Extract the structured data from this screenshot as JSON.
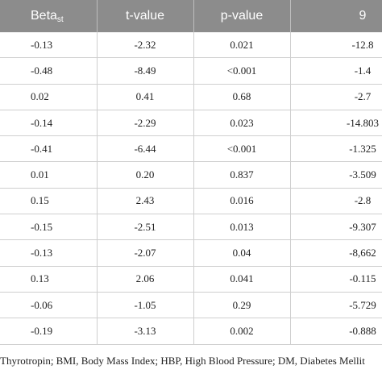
{
  "table": {
    "header": [
      "Beta",
      "t-value",
      "p-value",
      "9"
    ],
    "header_sub": "st",
    "rows": [
      [
        "-0.13",
        "-2.32",
        "0.021",
        "-12.8"
      ],
      [
        "-0.48",
        "-8.49",
        "<0.001",
        "-1.4"
      ],
      [
        "0.02",
        "0.41",
        "0.68",
        "-2.7"
      ],
      [
        "-0.14",
        "-2.29",
        "0.023",
        "-14.803"
      ],
      [
        "-0.41",
        "-6.44",
        "<0.001",
        "-1.325"
      ],
      [
        "0.01",
        "0.20",
        "0.837",
        "-3.509"
      ],
      [
        "0.15",
        "2.43",
        "0.016",
        "-2.8"
      ],
      [
        "-0.15",
        "-2.51",
        "0.013",
        "-9.307"
      ],
      [
        "-0.13",
        "-2.07",
        "0.04",
        "-8,662"
      ],
      [
        "0.13",
        "2.06",
        "0.041",
        "-0.115"
      ],
      [
        "-0.06",
        "-1.05",
        "0.29",
        "-5.729"
      ],
      [
        "-0.19",
        "-3.13",
        "0.002",
        "-0.888"
      ]
    ]
  },
  "footnote": "Thyrotropin; BMI, Body Mass Index; HBP, High Blood Pressure; DM, Diabetes Mellit"
}
